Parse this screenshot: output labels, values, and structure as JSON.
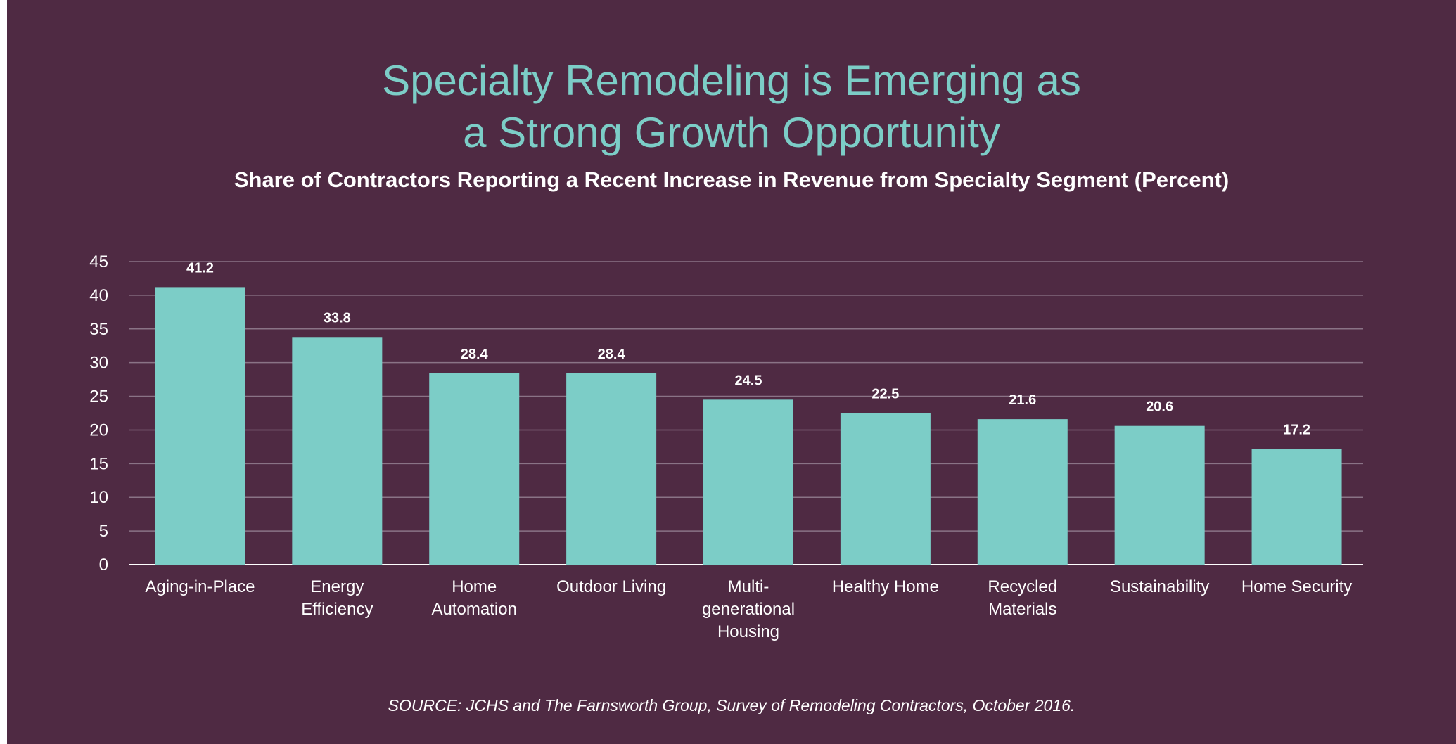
{
  "chart_data": {
    "type": "bar",
    "title_lines": [
      "Specialty Remodeling is Emerging as",
      "a Strong Growth Opportunity"
    ],
    "subtitle": "Share of Contractors Reporting a Recent Increase in Revenue from Specialty Segment (Percent)",
    "categories": [
      [
        "Aging-in-Place"
      ],
      [
        "Energy",
        "Efficiency"
      ],
      [
        "Home",
        "Automation"
      ],
      [
        "Outdoor Living"
      ],
      [
        "Multi-",
        "generational",
        "Housing"
      ],
      [
        "Healthy Home"
      ],
      [
        "Recycled",
        "Materials"
      ],
      [
        "Sustainability"
      ],
      [
        "Home Security"
      ]
    ],
    "values": [
      41.2,
      33.8,
      28.4,
      28.4,
      24.5,
      22.5,
      21.6,
      20.6,
      17.2
    ],
    "data_labels": [
      "41.2",
      "33.8",
      "28.4",
      "28.4",
      "24.5",
      "22.5",
      "21.6",
      "20.6",
      "17.2"
    ],
    "yticks": [
      "0",
      "5",
      "10",
      "15",
      "20",
      "25",
      "30",
      "35",
      "40",
      "45"
    ],
    "ylim": [
      0,
      45
    ],
    "grid": true,
    "legend": "none",
    "source": "SOURCE: JCHS and The Farnsworth Group, Survey of Remodeling Contractors, October 2016.",
    "colors": {
      "background": "#4f2a43",
      "bar": "#7ccdc7",
      "title": "#7ccdc7",
      "text": "#ffffff",
      "gridline": "#8a7386",
      "axis": "#ffffff"
    }
  }
}
